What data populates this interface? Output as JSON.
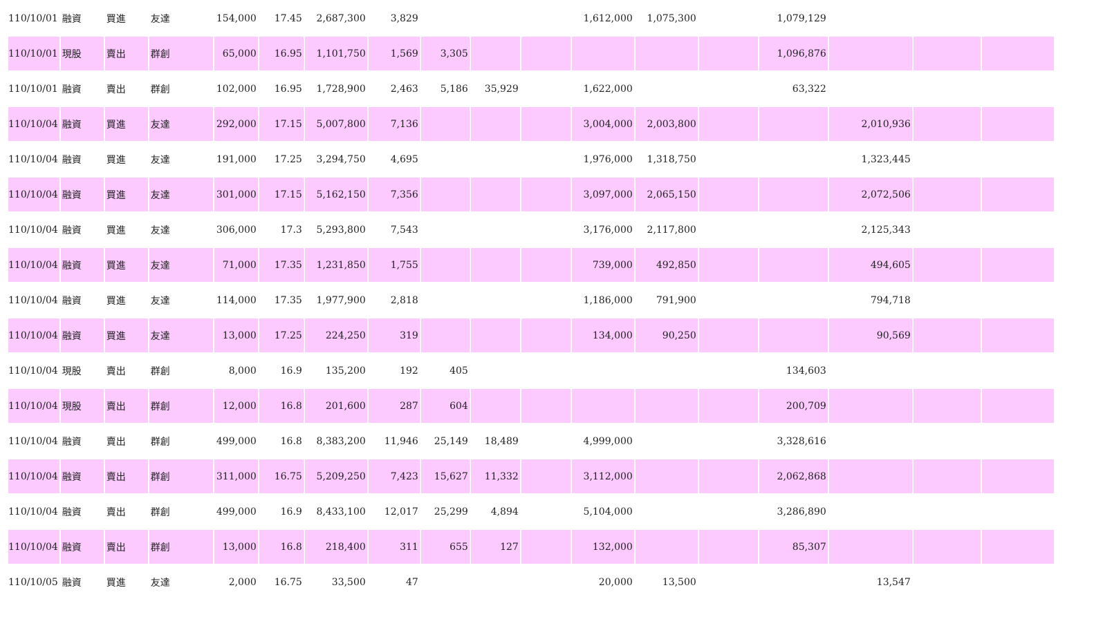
{
  "colors": {
    "row_alt": "#fccaff",
    "row_plain": "#ffffff"
  },
  "rows": [
    [
      "110/10/01",
      "融資",
      "買進",
      "友達",
      "154,000",
      "17.45",
      "2,687,300",
      "3,829",
      "",
      "",
      "",
      "1,612,000",
      "1,075,300",
      "",
      "1,079,129",
      "",
      ""
    ],
    [
      "110/10/01",
      "現股",
      "賣出",
      "群創",
      "65,000",
      "16.95",
      "1,101,750",
      "1,569",
      "3,305",
      "",
      "",
      "",
      "",
      "",
      "1,096,876",
      "",
      ""
    ],
    [
      "110/10/01",
      "融資",
      "賣出",
      "群創",
      "102,000",
      "16.95",
      "1,728,900",
      "2,463",
      "5,186",
      "35,929",
      "",
      "1,622,000",
      "",
      "",
      "63,322",
      "",
      ""
    ],
    [
      "110/10/04",
      "融資",
      "買進",
      "友達",
      "292,000",
      "17.15",
      "5,007,800",
      "7,136",
      "",
      "",
      "",
      "3,004,000",
      "2,003,800",
      "",
      "",
      "2,010,936",
      "",
      ""
    ],
    [
      "110/10/04",
      "融資",
      "買進",
      "友達",
      "191,000",
      "17.25",
      "3,294,750",
      "4,695",
      "",
      "",
      "",
      "1,976,000",
      "1,318,750",
      "",
      "",
      "1,323,445",
      "",
      ""
    ],
    [
      "110/10/04",
      "融資",
      "買進",
      "友達",
      "301,000",
      "17.15",
      "5,162,150",
      "7,356",
      "",
      "",
      "",
      "3,097,000",
      "2,065,150",
      "",
      "",
      "2,072,506",
      "",
      ""
    ],
    [
      "110/10/04",
      "融資",
      "買進",
      "友達",
      "306,000",
      "17.3",
      "5,293,800",
      "7,543",
      "",
      "",
      "",
      "3,176,000",
      "2,117,800",
      "",
      "",
      "2,125,343",
      "",
      ""
    ],
    [
      "110/10/04",
      "融資",
      "買進",
      "友達",
      "71,000",
      "17.35",
      "1,231,850",
      "1,755",
      "",
      "",
      "",
      "739,000",
      "492,850",
      "",
      "",
      "494,605",
      "",
      ""
    ],
    [
      "110/10/04",
      "融資",
      "買進",
      "友達",
      "114,000",
      "17.35",
      "1,977,900",
      "2,818",
      "",
      "",
      "",
      "1,186,000",
      "791,900",
      "",
      "",
      "794,718",
      "",
      ""
    ],
    [
      "110/10/04",
      "融資",
      "買進",
      "友達",
      "13,000",
      "17.25",
      "224,250",
      "319",
      "",
      "",
      "",
      "134,000",
      "90,250",
      "",
      "",
      "90,569",
      "",
      ""
    ],
    [
      "110/10/04",
      "現股",
      "賣出",
      "群創",
      "8,000",
      "16.9",
      "135,200",
      "192",
      "405",
      "",
      "",
      "",
      "",
      "",
      "134,603",
      "",
      ""
    ],
    [
      "110/10/04",
      "現股",
      "賣出",
      "群創",
      "12,000",
      "16.8",
      "201,600",
      "287",
      "604",
      "",
      "",
      "",
      "",
      "",
      "200,709",
      "",
      ""
    ],
    [
      "110/10/04",
      "融資",
      "賣出",
      "群創",
      "499,000",
      "16.8",
      "8,383,200",
      "11,946",
      "25,149",
      "18,489",
      "",
      "4,999,000",
      "",
      "",
      "3,328,616",
      "",
      ""
    ],
    [
      "110/10/04",
      "融資",
      "賣出",
      "群創",
      "311,000",
      "16.75",
      "5,209,250",
      "7,423",
      "15,627",
      "11,332",
      "",
      "3,112,000",
      "",
      "",
      "2,062,868",
      "",
      ""
    ],
    [
      "110/10/04",
      "融資",
      "賣出",
      "群創",
      "499,000",
      "16.9",
      "8,433,100",
      "12,017",
      "25,299",
      "4,894",
      "",
      "5,104,000",
      "",
      "",
      "3,286,890",
      "",
      ""
    ],
    [
      "110/10/04",
      "融資",
      "賣出",
      "群創",
      "13,000",
      "16.8",
      "218,400",
      "311",
      "655",
      "127",
      "",
      "132,000",
      "",
      "",
      "85,307",
      "",
      ""
    ],
    [
      "110/10/05",
      "融資",
      "買進",
      "友達",
      "2,000",
      "16.75",
      "33,500",
      "47",
      "",
      "",
      "",
      "20,000",
      "13,500",
      "",
      "",
      "13,547",
      "",
      ""
    ]
  ]
}
